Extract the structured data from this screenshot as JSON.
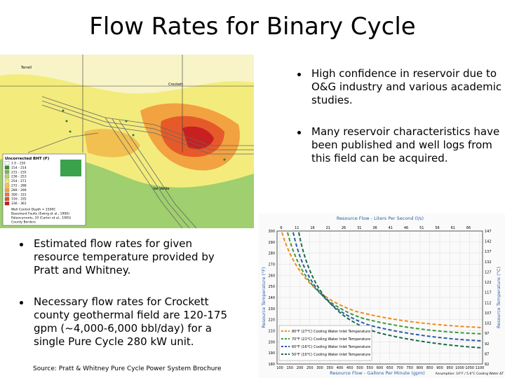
{
  "title": "Flow Rates for Binary Cycle",
  "bullets_right": [
    "High confidence in reservoir due to O&G industry and various academic studies.",
    "Many reservoir characteristics have been published and well logs from this field can be acquired."
  ],
  "bullets_left": [
    "Estimated flow rates for given resource temperature provided by Pratt and Whitney.",
    "Necessary flow rates for Crockett county geothermal field are 120-175 gpm (~4,000-6,000 bbl/day) for a single Pure Cycle 280 kW unit."
  ],
  "source": "Source: Pratt & Whitney Pure Cycle Power System Brochure",
  "map": {
    "labels": [
      "Terrell",
      "Crockett",
      "Val Verde"
    ],
    "legend_title": "Uncorrected BHT (F)",
    "legend_items": [
      "1.0 - 150",
      "154 - 214",
      "215 - 235",
      "236 - 253",
      "254 - 271",
      "272 - 288",
      "289 - 299",
      "300 - 315",
      "316 - 335",
      "336 - 361"
    ],
    "legend_symbols": [
      "Well Control Depth > 1500C",
      "Basement Faults (Ewing et al., 1990)",
      "Paleocurrents, 10 (Carter et al., 1991)",
      "County Borders"
    ]
  },
  "chart": {
    "top_title": "Resource Flow - Liters Per Second (l/s)",
    "bottom_title": "Resource Flow - Gallons Per Minute (gpm)",
    "left_title": "Resource Temperature (°F)",
    "right_title": "Resource Temperature (°C)",
    "top_ticks": [
      "6",
      "11",
      "16",
      "21",
      "26",
      "31",
      "36",
      "41",
      "46",
      "51",
      "56",
      "61",
      "66"
    ],
    "bottom_ticks": [
      "100",
      "150",
      "200",
      "250",
      "300",
      "350",
      "400",
      "450",
      "500",
      "550",
      "600",
      "650",
      "700",
      "750",
      "800",
      "850",
      "900",
      "950",
      "1000",
      "1050",
      "1100"
    ],
    "left_ticks": [
      "300",
      "290",
      "280",
      "270",
      "260",
      "250",
      "240",
      "230",
      "220",
      "210",
      "200",
      "190",
      "180"
    ],
    "right_ticks": [
      "147",
      "142",
      "137",
      "132",
      "127",
      "122",
      "117",
      "112",
      "107",
      "102",
      "97",
      "92",
      "87",
      "82"
    ],
    "legend": [
      "80°F (27°C) Cooling Water Inlet Temperature",
      "70°F (21°C) Cooling Water Inlet Temperature",
      "60°F (16°C) Cooling Water Inlet Temperature",
      "50°F (10°C) Cooling Water Inlet Temperature"
    ],
    "note": "Assumption: 10°F / 5.6°C Cooling Water ΔT"
  }
}
